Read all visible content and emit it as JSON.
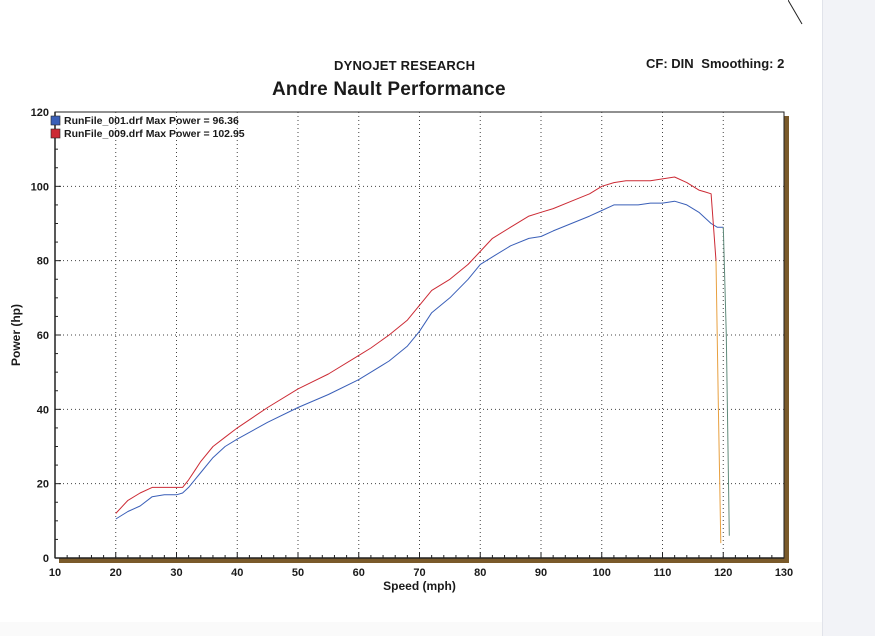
{
  "header": {
    "brand": "DYNOJET RESEARCH",
    "cf_label": "CF: DIN",
    "smoothing_label": "Smoothing: 2",
    "title": "Andre Nault Performance"
  },
  "colors": {
    "series_1": "#3a5fb8",
    "series_2": "#cc2b35",
    "series_2_end": "#e8a040",
    "grid": "#444444",
    "frame": "#222222"
  },
  "chart_data": {
    "type": "line",
    "title": "Andre Nault Performance",
    "xlabel": "Speed (mph)",
    "ylabel": "Power (hp)",
    "xlim": [
      10,
      130
    ],
    "ylim": [
      0,
      120
    ],
    "x_ticks": [
      10,
      20,
      30,
      40,
      50,
      60,
      70,
      80,
      90,
      100,
      110,
      120,
      130
    ],
    "y_ticks": [
      0,
      20,
      40,
      60,
      80,
      100,
      120
    ],
    "grid": true,
    "legend_position": "top-left",
    "series": [
      {
        "name": "RunFile_001.drf Max Power = 96.36",
        "color": "#3a5fb8",
        "x": [
          20,
          22,
          24,
          26,
          28,
          30,
          31,
          32,
          33,
          34,
          36,
          38,
          40,
          45,
          50,
          55,
          60,
          62,
          65,
          68,
          70,
          72,
          75,
          78,
          80,
          82,
          85,
          88,
          90,
          92,
          95,
          98,
          100,
          102,
          104,
          106,
          108,
          110,
          112,
          114,
          116,
          118,
          119,
          120,
          120.5,
          121
        ],
        "y": [
          10.5,
          12.5,
          14,
          16.5,
          17,
          17,
          17.5,
          19,
          21,
          23,
          27,
          30,
          32,
          36.5,
          40.5,
          44,
          48,
          50,
          53,
          57,
          61,
          66,
          70,
          75,
          79,
          81,
          84,
          86,
          86.5,
          88,
          90,
          92,
          93.5,
          95,
          95,
          95,
          95.5,
          95.5,
          96,
          95,
          93,
          90,
          89,
          89,
          60,
          6
        ]
      },
      {
        "name": "RunFile_009.drf Max Power = 102.95",
        "color": "#cc2b35",
        "x": [
          20,
          22,
          24,
          26,
          28,
          30,
          31,
          32,
          33,
          34,
          36,
          38,
          40,
          45,
          50,
          55,
          60,
          62,
          65,
          68,
          70,
          72,
          75,
          78,
          80,
          82,
          85,
          88,
          90,
          92,
          95,
          98,
          100,
          102,
          104,
          106,
          108,
          110,
          112,
          114,
          116,
          117,
          118,
          118.8,
          119.2,
          119.6
        ],
        "y": [
          12,
          15.5,
          17.5,
          19,
          19,
          19,
          19,
          21,
          23.5,
          26,
          30,
          32.5,
          35,
          40.5,
          45.5,
          49.5,
          54.5,
          56.5,
          60,
          64,
          68,
          72,
          75,
          79,
          82.5,
          86,
          89,
          92,
          93,
          94,
          96,
          98,
          100,
          101,
          101.5,
          101.5,
          101.5,
          102,
          102.5,
          101,
          99,
          98.5,
          98,
          80,
          40,
          4
        ]
      }
    ]
  }
}
